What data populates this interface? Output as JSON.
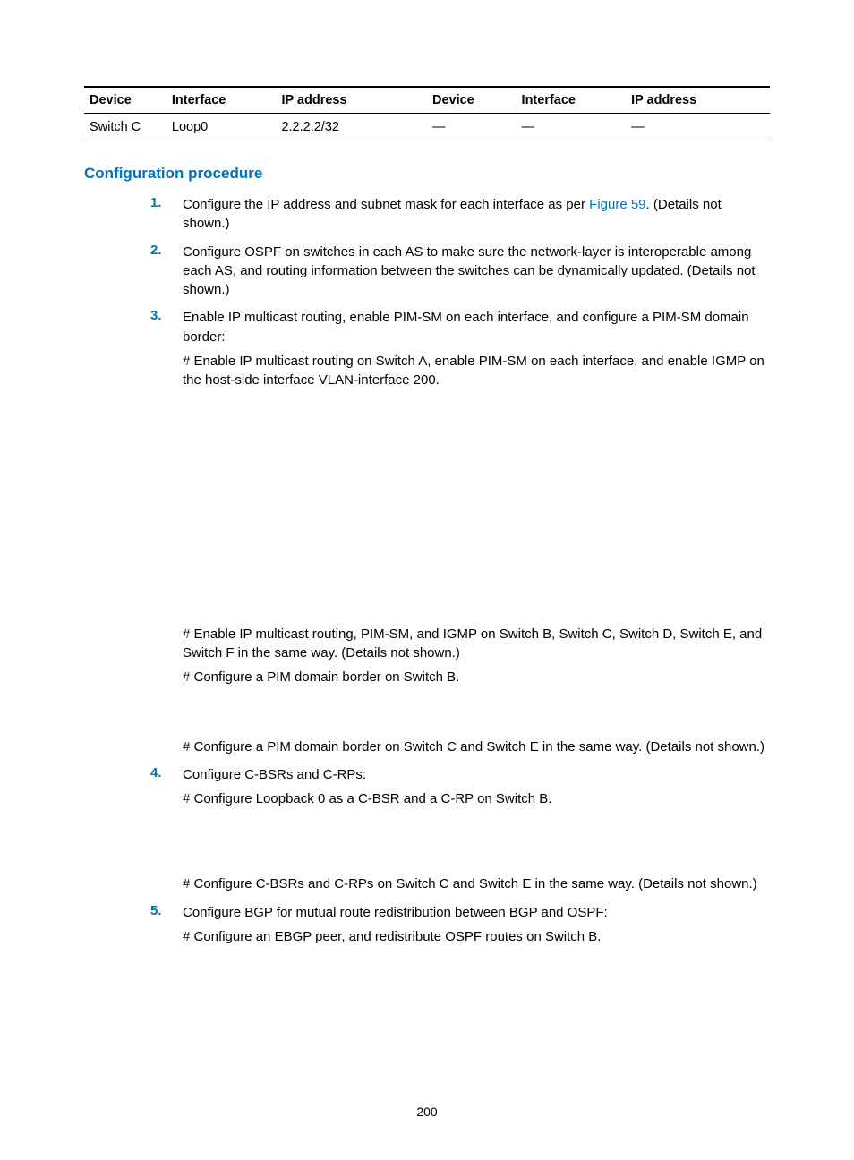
{
  "table": {
    "columns": [
      "Device",
      "Interface",
      "IP address",
      "Device",
      "Interface",
      "IP address"
    ],
    "rows": [
      [
        "Switch C",
        "Loop0",
        "2.2.2.2/32",
        "—",
        "—",
        "—"
      ]
    ],
    "border_top_width": 2,
    "border_mid_width": 1,
    "border_bottom_width": 1,
    "header_fontsize": 14.5,
    "cell_fontsize": 14.5,
    "col_widths_pct": [
      12,
      16,
      22,
      13,
      16,
      21
    ]
  },
  "heading": {
    "text": "Configuration procedure",
    "color": "#0073ba",
    "fontsize": 17
  },
  "steps": [
    {
      "num": "1.",
      "paras": [
        {
          "pre": "Configure the IP address and subnet mask for each interface as per ",
          "link": "Figure 59",
          "post": ". (Details not shown.)"
        }
      ]
    },
    {
      "num": "2.",
      "paras": [
        {
          "text": "Configure OSPF on switches in each AS to make sure the network-layer is interoperable among each AS, and routing information between the switches can be dynamically updated. (Details not shown.)"
        }
      ]
    },
    {
      "num": "3.",
      "paras": [
        {
          "text": "Enable IP multicast routing, enable PIM-SM on each interface, and configure a PIM-SM domain border:"
        },
        {
          "text": "# Enable IP multicast routing on Switch A, enable PIM-SM on each interface, and enable IGMP on the host-side interface VLAN-interface 200."
        },
        {
          "gap": "a"
        },
        {
          "text": "# Enable IP multicast routing, PIM-SM, and IGMP on Switch B, Switch C, Switch D, Switch E, and Switch F in the same way. (Details not shown.)"
        },
        {
          "text": "# Configure a PIM domain border on Switch B."
        },
        {
          "gap": "b"
        },
        {
          "text": "# Configure a PIM domain border on Switch C and Switch E in the same way. (Details not shown.)"
        }
      ]
    },
    {
      "num": "4.",
      "paras": [
        {
          "text": "Configure C-BSRs and C-RPs:"
        },
        {
          "text": "# Configure Loopback 0 as a C-BSR and a C-RP on Switch B."
        },
        {
          "gap": "c"
        },
        {
          "text": "# Configure C-BSRs and C-RPs on Switch C and Switch E in the same way. (Details not shown.)"
        }
      ]
    },
    {
      "num": "5.",
      "paras": [
        {
          "text": "Configure BGP for mutual route redistribution between BGP and OSPF:"
        },
        {
          "text": "# Configure an EBGP peer, and redistribute OSPF routes on Switch B."
        }
      ]
    }
  ],
  "colors": {
    "accent": "#0073ba",
    "text": "#000000",
    "background": "#ffffff"
  },
  "page_number": "200"
}
